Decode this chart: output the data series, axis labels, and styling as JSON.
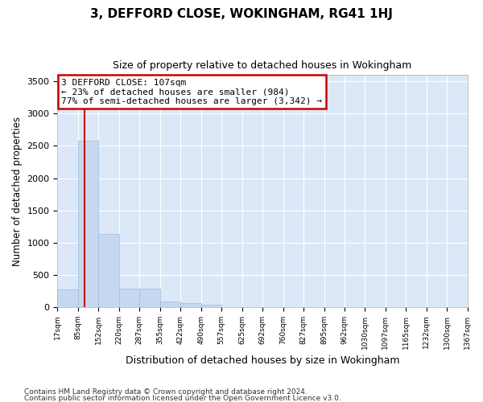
{
  "title": "3, DEFFORD CLOSE, WOKINGHAM, RG41 1HJ",
  "subtitle": "Size of property relative to detached houses in Wokingham",
  "xlabel": "Distribution of detached houses by size in Wokingham",
  "ylabel": "Number of detached properties",
  "bar_color": "#c5d8f0",
  "bar_edge_color": "#9bbde0",
  "background_color": "#dce8f8",
  "grid_color": "#ffffff",
  "annotation_line1": "3 DEFFORD CLOSE: 107sqm",
  "annotation_line2": "← 23% of detached houses are smaller (984)",
  "annotation_line3": "77% of semi-detached houses are larger (3,342) →",
  "annotation_box_color": "#ffffff",
  "annotation_border_color": "#cc0000",
  "vline_x": 107,
  "vline_color": "#cc0000",
  "bin_edges": [
    17,
    85,
    152,
    220,
    287,
    355,
    422,
    490,
    557,
    625,
    692,
    760,
    827,
    895,
    962,
    1030,
    1097,
    1165,
    1232,
    1300,
    1367
  ],
  "bar_heights": [
    270,
    2580,
    1130,
    280,
    290,
    90,
    65,
    38,
    0,
    0,
    0,
    0,
    0,
    0,
    0,
    0,
    0,
    0,
    0,
    0
  ],
  "ylim": [
    0,
    3600
  ],
  "yticks": [
    0,
    500,
    1000,
    1500,
    2000,
    2500,
    3000,
    3500
  ],
  "fig_facecolor": "#ffffff",
  "footnote1": "Contains HM Land Registry data © Crown copyright and database right 2024.",
  "footnote2": "Contains public sector information licensed under the Open Government Licence v3.0."
}
